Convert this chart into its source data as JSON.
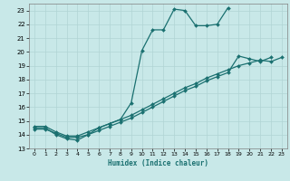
{
  "xlabel": "Humidex (Indice chaleur)",
  "bg_color": "#c8e8e8",
  "grid_color": "#b0d4d4",
  "line_color": "#1a7070",
  "xlim": [
    -0.5,
    23.5
  ],
  "ylim": [
    13.0,
    23.5
  ],
  "xticks": [
    0,
    1,
    2,
    3,
    4,
    5,
    6,
    7,
    8,
    9,
    10,
    11,
    12,
    13,
    14,
    15,
    16,
    17,
    18,
    19,
    20,
    21,
    22,
    23
  ],
  "yticks": [
    13,
    14,
    15,
    16,
    17,
    18,
    19,
    20,
    21,
    22,
    23
  ],
  "series1_x": [
    0,
    1,
    2,
    3,
    4,
    5,
    6,
    7,
    8,
    9,
    10,
    11,
    12,
    13,
    14,
    15,
    16,
    17,
    18
  ],
  "series1_y": [
    14.5,
    14.5,
    14.0,
    13.7,
    13.6,
    14.0,
    14.5,
    14.8,
    15.1,
    16.3,
    20.1,
    21.6,
    21.6,
    23.1,
    23.0,
    21.9,
    21.9,
    22.0,
    23.2
  ],
  "series2_x": [
    0,
    1,
    2,
    3,
    4,
    5,
    6,
    7,
    8,
    9,
    10,
    11,
    12,
    13,
    14,
    15,
    16,
    17,
    18,
    19,
    20,
    21,
    22
  ],
  "series2_y": [
    14.4,
    14.4,
    14.1,
    13.8,
    13.8,
    14.0,
    14.3,
    14.6,
    14.9,
    15.2,
    15.6,
    16.0,
    16.4,
    16.8,
    17.2,
    17.5,
    17.9,
    18.2,
    18.5,
    19.7,
    19.5,
    19.3,
    19.6
  ],
  "series3_x": [
    0,
    1,
    2,
    3,
    4,
    5,
    6,
    7,
    8,
    9,
    10,
    11,
    12,
    13,
    14,
    15,
    16,
    17,
    18,
    19,
    20,
    21,
    22,
    23
  ],
  "series3_y": [
    14.6,
    14.6,
    14.2,
    13.9,
    13.9,
    14.2,
    14.5,
    14.8,
    15.1,
    15.4,
    15.8,
    16.2,
    16.6,
    17.0,
    17.4,
    17.7,
    18.1,
    18.4,
    18.7,
    19.0,
    19.2,
    19.4,
    19.3,
    19.6
  ]
}
